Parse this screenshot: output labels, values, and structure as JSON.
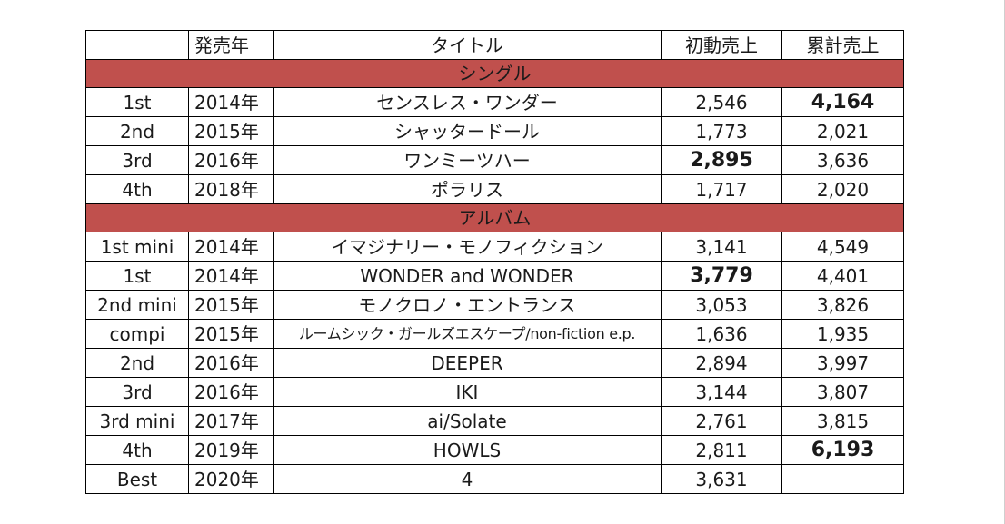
{
  "headers": {
    "no": "",
    "year": "発売年",
    "title": "タイトル",
    "initial": "初動売上",
    "total": "累計売上"
  },
  "sections": [
    {
      "label": "シングル",
      "rows": [
        {
          "no": "1st",
          "year": "2014年",
          "title": "センスレス・ワンダー",
          "initial": "2,546",
          "total": "4,164"
        },
        {
          "no": "2nd",
          "year": "2015年",
          "title": "シャッタードール",
          "initial": "1,773",
          "total": "2,021"
        },
        {
          "no": "3rd",
          "year": "2016年",
          "title": "ワンミーツハー",
          "initial": "2,895",
          "total": "3,636"
        },
        {
          "no": "4th",
          "year": "2018年",
          "title": "ポラリス",
          "initial": "1,717",
          "total": "2,020"
        }
      ]
    },
    {
      "label": "アルバム",
      "rows": [
        {
          "no": "1st mini",
          "year": "2014年",
          "title": "イマジナリー・モノフィクション",
          "initial": "3,141",
          "total": "4,549"
        },
        {
          "no": "1st",
          "year": "2014年",
          "title": "WONDER and WONDER",
          "initial": "3,779",
          "total": "4,401"
        },
        {
          "no": "2nd mini",
          "year": "2015年",
          "title": "モノクロノ・エントランス",
          "initial": "3,053",
          "total": "3,826"
        },
        {
          "no": "compi",
          "year": "2015年",
          "title": "ルームシック・ガールズエスケープ/non-fiction e.p.",
          "initial": "1,636",
          "total": "1,935"
        },
        {
          "no": "2nd",
          "year": "2016年",
          "title": "DEEPER",
          "initial": "2,894",
          "total": "3,997"
        },
        {
          "no": "3rd",
          "year": "2016年",
          "title": "IKI",
          "initial": "3,144",
          "total": "3,807"
        },
        {
          "no": "3rd mini",
          "year": "2017年",
          "title": "ai/Solate",
          "initial": "2,761",
          "total": "3,815"
        },
        {
          "no": "4th",
          "year": "2019年",
          "title": "HOWLS",
          "initial": "2,811",
          "total": "6,193"
        },
        {
          "no": "Best",
          "year": "2020年",
          "title": "4",
          "initial": "3,631",
          "total": ""
        }
      ]
    }
  ],
  "colors": {
    "section_fill": "#c0504d",
    "grid": "#000000",
    "text": "#1a1a1a"
  }
}
